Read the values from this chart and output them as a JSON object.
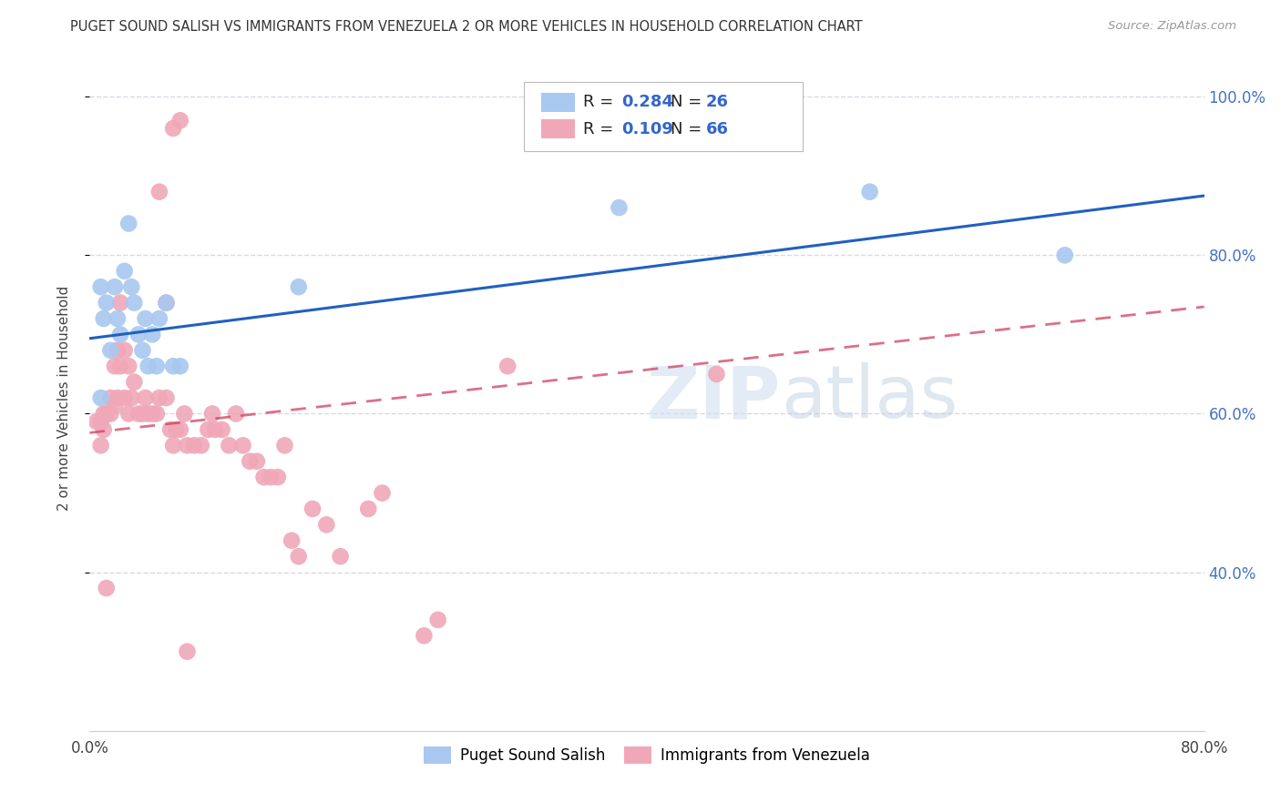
{
  "title": "PUGET SOUND SALISH VS IMMIGRANTS FROM VENEZUELA 2 OR MORE VEHICLES IN HOUSEHOLD CORRELATION CHART",
  "source": "Source: ZipAtlas.com",
  "ylabel": "2 or more Vehicles in Household",
  "blue_R": 0.284,
  "blue_N": 26,
  "pink_R": 0.109,
  "pink_N": 66,
  "blue_color": "#a8c8f0",
  "pink_color": "#f0a8b8",
  "blue_line_color": "#2060c0",
  "pink_line_color": "#d04060",
  "watermark_color": "#c8d8ec",
  "background_color": "#FFFFFF",
  "grid_color": "#d8d8e8",
  "xmin": 0.0,
  "xmax": 0.8,
  "ymin": 0.2,
  "ymax": 1.04,
  "blue_line_x0": 0.0,
  "blue_line_y0": 0.695,
  "blue_line_x1": 0.8,
  "blue_line_y1": 0.875,
  "pink_line_x0": 0.0,
  "pink_line_y0": 0.576,
  "pink_line_x1": 0.8,
  "pink_line_y1": 0.735,
  "blue_scatter_x": [
    0.008,
    0.01,
    0.012,
    0.015,
    0.018,
    0.02,
    0.022,
    0.025,
    0.028,
    0.03,
    0.032,
    0.035,
    0.038,
    0.04,
    0.042,
    0.045,
    0.048,
    0.05,
    0.055,
    0.06,
    0.065,
    0.008,
    0.56,
    0.7,
    0.38,
    0.15
  ],
  "blue_scatter_y": [
    0.76,
    0.72,
    0.74,
    0.68,
    0.76,
    0.72,
    0.7,
    0.78,
    0.84,
    0.76,
    0.74,
    0.7,
    0.68,
    0.72,
    0.66,
    0.7,
    0.66,
    0.72,
    0.74,
    0.66,
    0.66,
    0.62,
    0.88,
    0.8,
    0.86,
    0.76
  ],
  "pink_scatter_x": [
    0.005,
    0.008,
    0.01,
    0.012,
    0.015,
    0.018,
    0.02,
    0.022,
    0.025,
    0.028,
    0.03,
    0.032,
    0.035,
    0.038,
    0.04,
    0.042,
    0.045,
    0.048,
    0.05,
    0.055,
    0.058,
    0.06,
    0.062,
    0.065,
    0.068,
    0.07,
    0.075,
    0.08,
    0.085,
    0.088,
    0.09,
    0.095,
    0.1,
    0.105,
    0.11,
    0.115,
    0.12,
    0.125,
    0.13,
    0.135,
    0.14,
    0.145,
    0.15,
    0.16,
    0.17,
    0.18,
    0.2,
    0.21,
    0.008,
    0.01,
    0.012,
    0.015,
    0.018,
    0.02,
    0.022,
    0.025,
    0.028,
    0.3,
    0.45,
    0.05,
    0.055,
    0.06,
    0.065,
    0.07,
    0.24,
    0.25
  ],
  "pink_scatter_y": [
    0.59,
    0.59,
    0.6,
    0.6,
    0.6,
    0.61,
    0.62,
    0.74,
    0.62,
    0.6,
    0.62,
    0.64,
    0.6,
    0.6,
    0.62,
    0.6,
    0.6,
    0.6,
    0.62,
    0.62,
    0.58,
    0.56,
    0.58,
    0.58,
    0.6,
    0.56,
    0.56,
    0.56,
    0.58,
    0.6,
    0.58,
    0.58,
    0.56,
    0.6,
    0.56,
    0.54,
    0.54,
    0.52,
    0.52,
    0.52,
    0.56,
    0.44,
    0.42,
    0.48,
    0.46,
    0.42,
    0.48,
    0.5,
    0.56,
    0.58,
    0.38,
    0.62,
    0.66,
    0.68,
    0.66,
    0.68,
    0.66,
    0.66,
    0.65,
    0.88,
    0.74,
    0.96,
    0.97,
    0.3,
    0.32,
    0.34
  ]
}
